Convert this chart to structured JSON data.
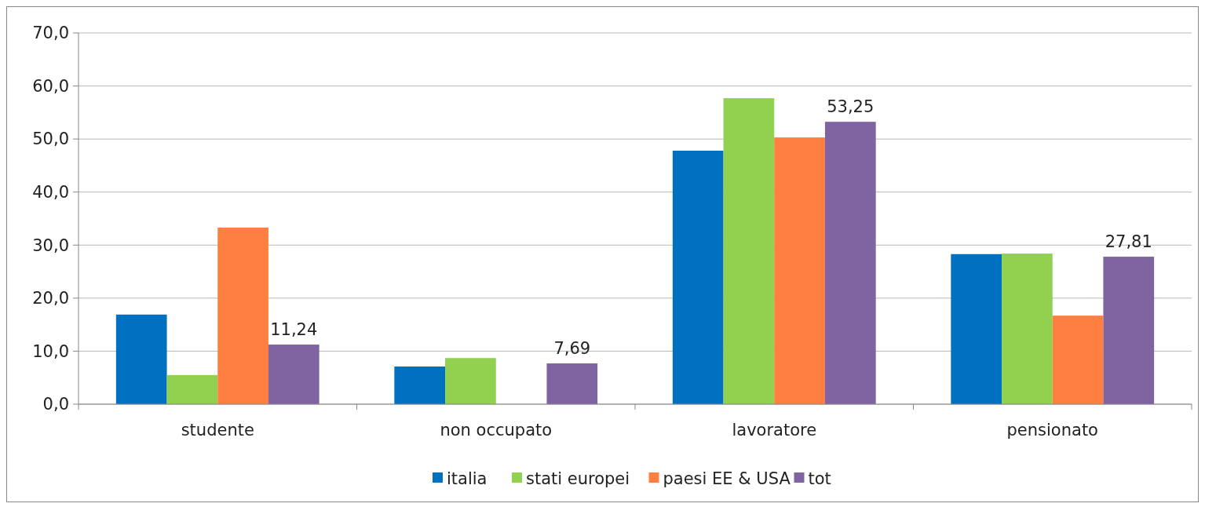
{
  "chart_data": {
    "type": "bar",
    "categories": [
      "studente",
      "non occupato",
      "lavoratore",
      "pensionato"
    ],
    "series": [
      {
        "name": "italia",
        "color": "#0070c0",
        "values": [
          16.9,
          7.1,
          47.8,
          28.3
        ]
      },
      {
        "name": "stati europei",
        "color": "#92d050",
        "values": [
          5.5,
          8.7,
          57.7,
          28.4
        ]
      },
      {
        "name": "paesi EE & USA",
        "color": "#ff7f41",
        "values": [
          33.3,
          0,
          50.3,
          16.7
        ]
      },
      {
        "name": "tot",
        "color": "#8064a2",
        "values": [
          11.24,
          7.69,
          53.25,
          27.81
        ],
        "value_labels": [
          "11,24",
          "7,69",
          "53,25",
          "27,81"
        ]
      }
    ],
    "ylim": [
      0,
      70
    ],
    "yticks": [
      {
        "value": 0,
        "label": "0,0"
      },
      {
        "value": 10,
        "label": "10,0"
      },
      {
        "value": 20,
        "label": "20,0"
      },
      {
        "value": 30,
        "label": "30,0"
      },
      {
        "value": 40,
        "label": "40,0"
      },
      {
        "value": 50,
        "label": "50,0"
      },
      {
        "value": 60,
        "label": "60,0"
      },
      {
        "value": 70,
        "label": "70,0"
      }
    ],
    "grid": "y",
    "legend": "bottom"
  }
}
